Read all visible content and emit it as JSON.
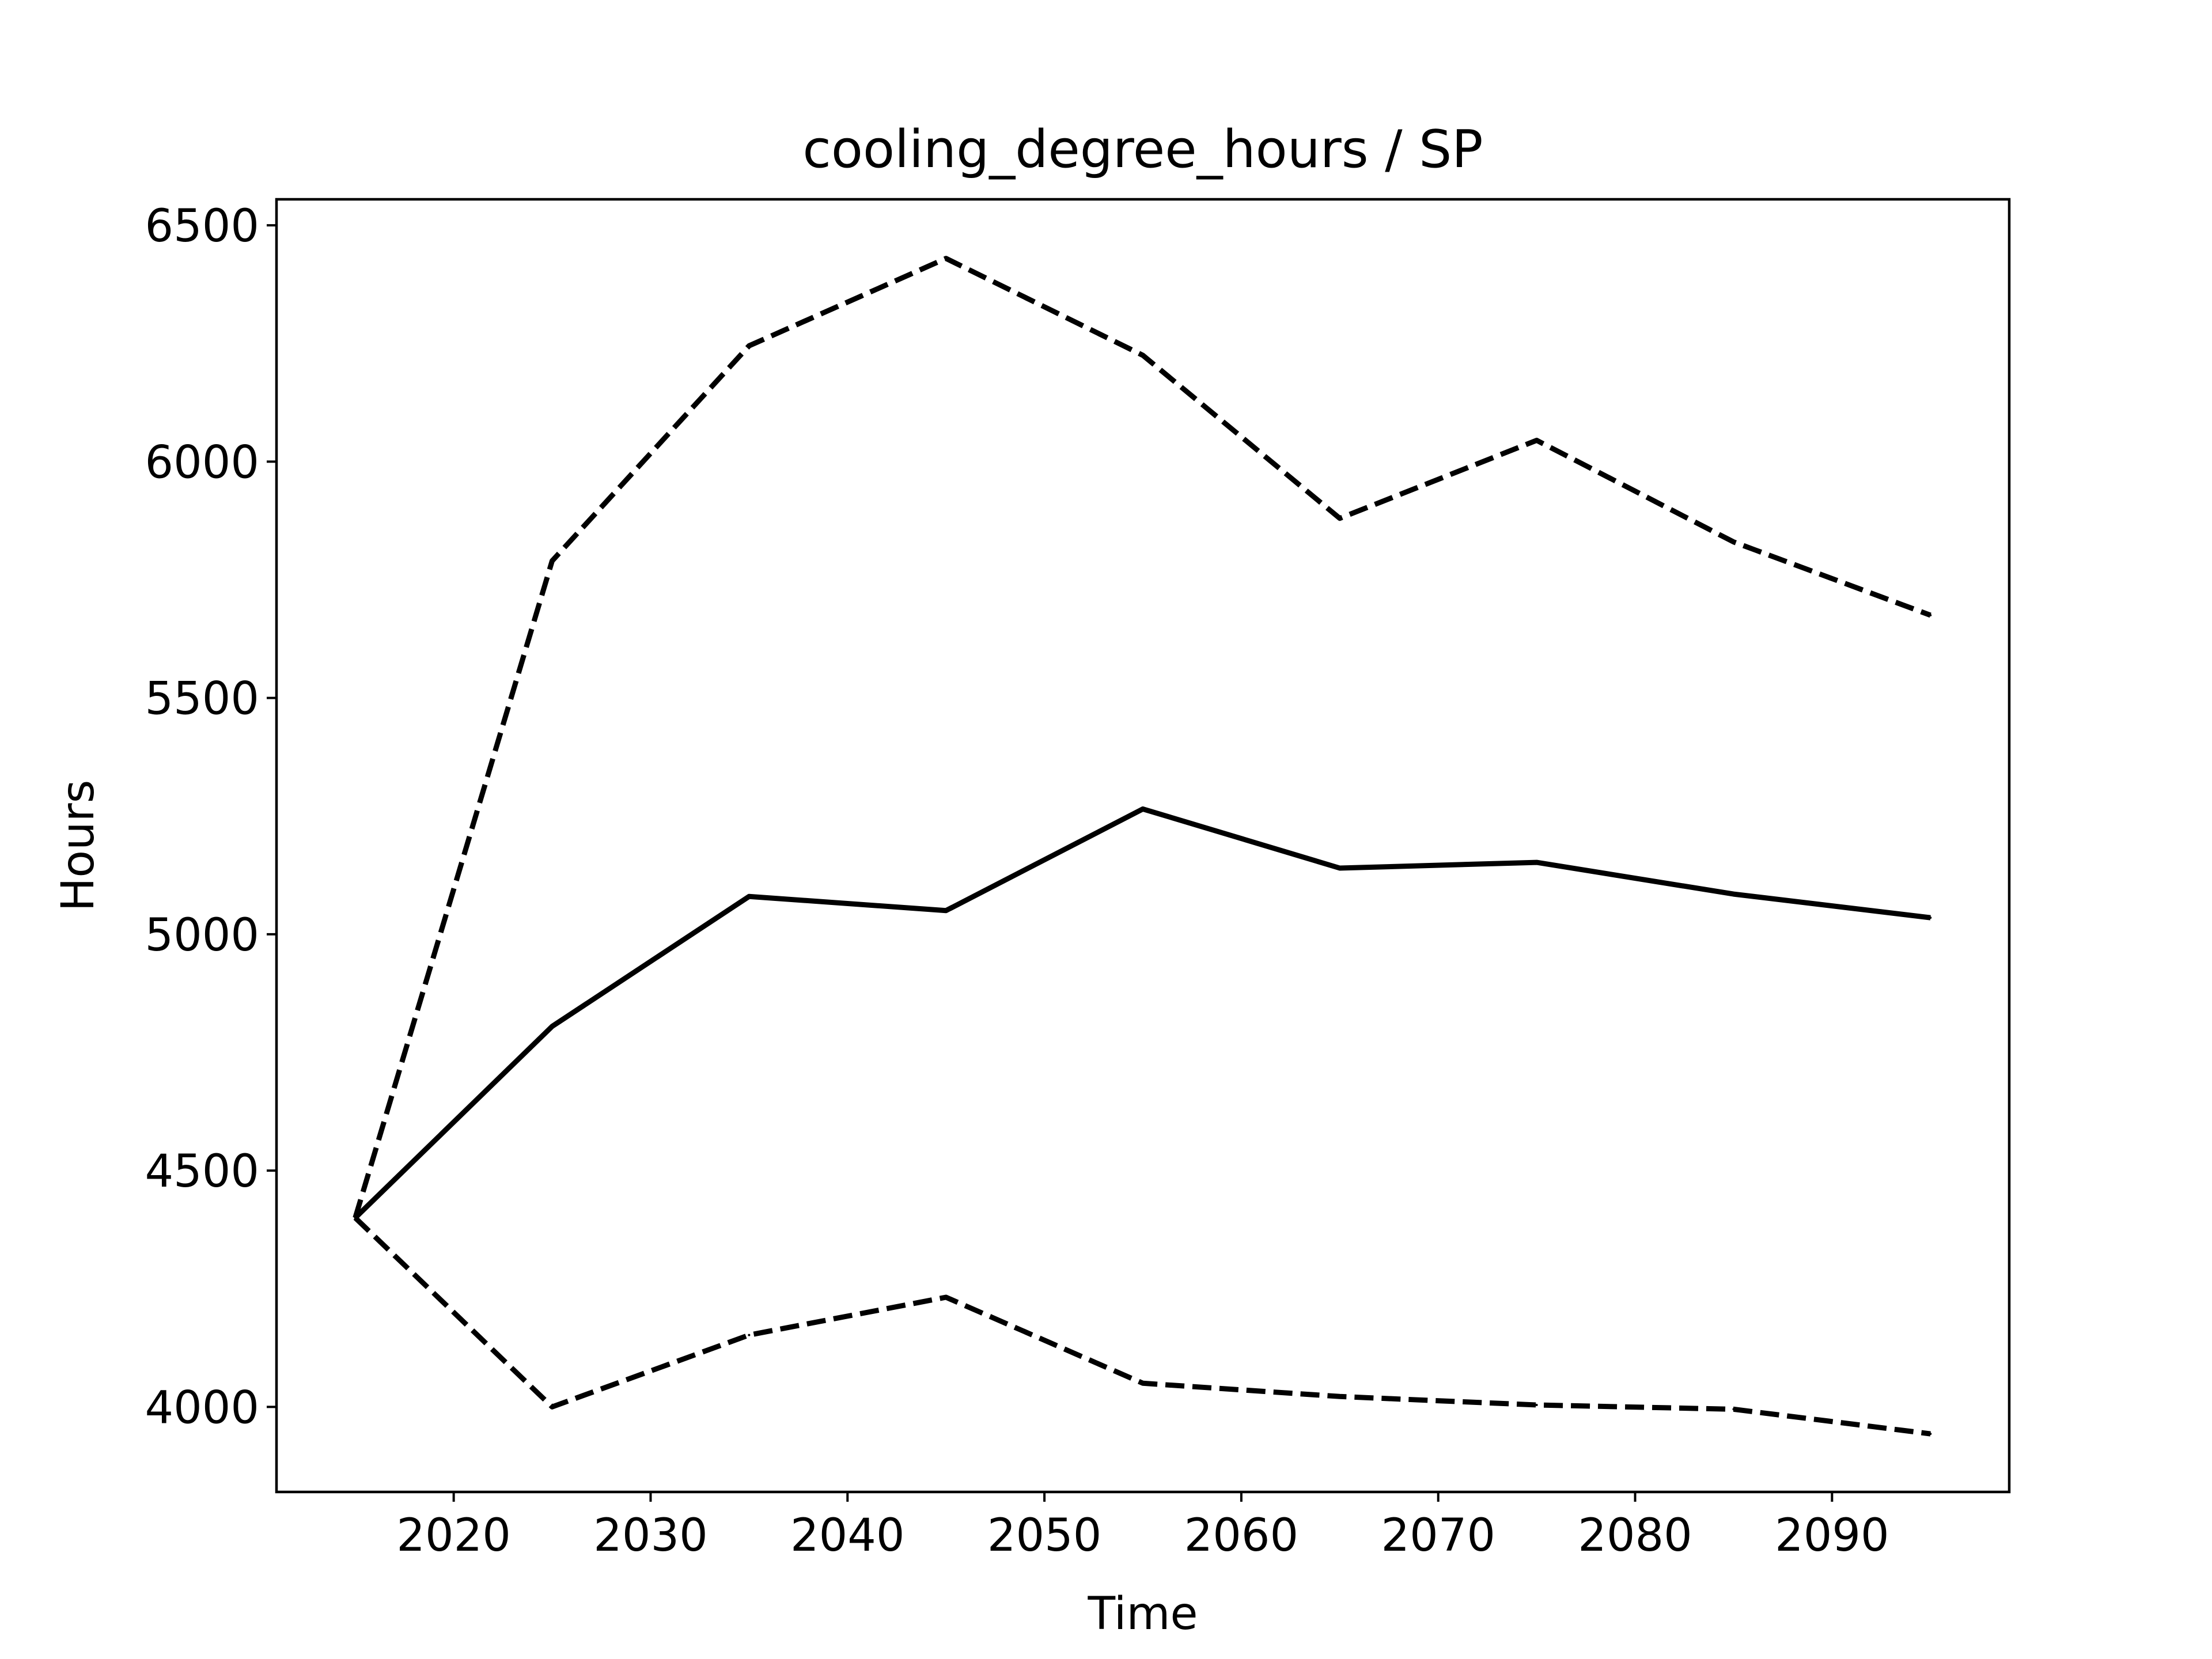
{
  "chart_data": {
    "type": "line",
    "title": "cooling_degree_hours / SP",
    "xlabel": "Time",
    "ylabel": "Hours",
    "x": [
      2015,
      2025,
      2035,
      2045,
      2055,
      2065,
      2075,
      2085,
      2095
    ],
    "xlim": [
      2011,
      2099
    ],
    "ylim": [
      3820,
      6555
    ],
    "xticks": [
      2020,
      2030,
      2040,
      2050,
      2060,
      2070,
      2080,
      2090
    ],
    "yticks": [
      4000,
      4500,
      5000,
      5500,
      6000,
      6500
    ],
    "grid": false,
    "colors": {
      "line": "#000000",
      "background": "#ffffff"
    },
    "series": [
      {
        "style": "solid",
        "values": [
          4400,
          4805,
          5080,
          5050,
          5265,
          5140,
          5152,
          5085,
          5035
        ]
      },
      {
        "style": "dashed",
        "values": [
          4400,
          5790,
          6245,
          6430,
          6225,
          5880,
          6045,
          5830,
          5675
        ]
      },
      {
        "style": "dashed",
        "values": [
          4400,
          4000,
          4152,
          4232,
          4050,
          4022,
          4004,
          3995,
          3943
        ]
      }
    ]
  }
}
